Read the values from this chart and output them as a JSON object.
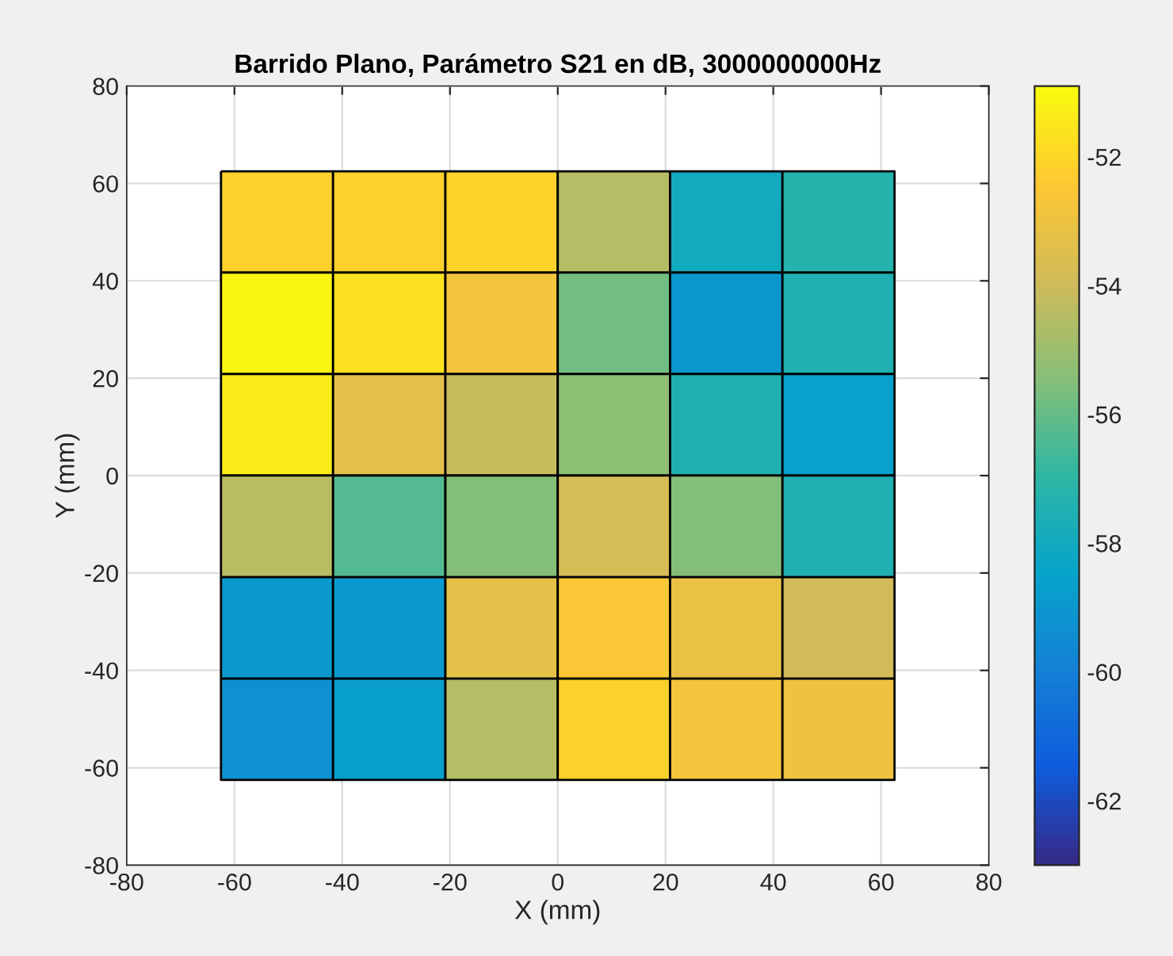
{
  "chart_data": {
    "type": "heatmap",
    "title": "Barrido Plano, Parámetro S21 en dB, 3000000000Hz",
    "xlabel": "X (mm)",
    "ylabel": "Y (mm)",
    "x": [
      -52.1,
      -31.3,
      -10.4,
      10.4,
      31.3,
      52.1
    ],
    "y": [
      52.1,
      31.3,
      10.4,
      -10.4,
      -31.3,
      -52.1
    ],
    "cells": [
      [
        -52.2,
        -52.2,
        -52.1,
        -54.5,
        -58.0,
        -57.3
      ],
      [
        -51.1,
        -51.7,
        -52.8,
        -55.8,
        -59.0,
        -57.5
      ],
      [
        -51.4,
        -53.4,
        -54.2,
        -55.3,
        -57.5,
        -58.6
      ],
      [
        -54.4,
        -56.3,
        -55.5,
        -53.8,
        -55.5,
        -57.5
      ],
      [
        -58.9,
        -58.9,
        -53.3,
        -52.6,
        -53.1,
        -53.9
      ],
      [
        -59.3,
        -58.7,
        -54.5,
        -52.2,
        -52.8,
        -53.0
      ]
    ],
    "clim": [
      -63,
      -50.9
    ],
    "cticks": [
      -52,
      -54,
      -56,
      -58,
      -60,
      -62
    ],
    "xlim": [
      -80,
      80
    ],
    "xticks": [
      -80,
      -60,
      -40,
      -20,
      0,
      20,
      40,
      60,
      80
    ],
    "ylim": [
      -80,
      80
    ],
    "yticks": [
      -80,
      -60,
      -40,
      -20,
      0,
      20,
      40,
      60,
      80
    ],
    "grid": true
  }
}
